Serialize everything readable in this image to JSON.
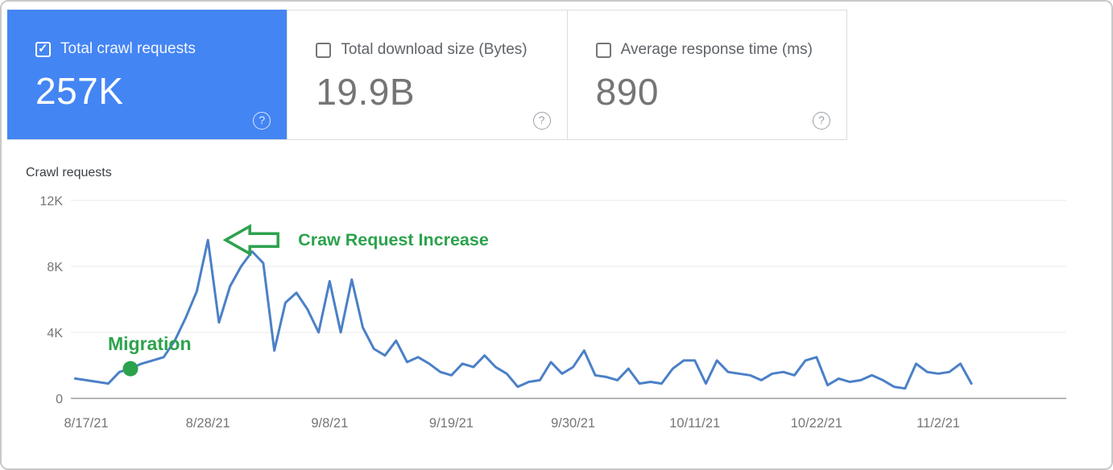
{
  "cards": [
    {
      "label": "Total crawl requests",
      "value": "257K",
      "checked": true,
      "selected": true,
      "help_icon": "?"
    },
    {
      "label": "Total download size (Bytes)",
      "value": "19.9B",
      "checked": false,
      "selected": false,
      "help_icon": "?"
    },
    {
      "label": "Average response time (ms)",
      "value": "890",
      "checked": false,
      "selected": false,
      "help_icon": "?"
    }
  ],
  "chart_data": {
    "type": "line",
    "title": "Crawl requests",
    "xlabel": "",
    "ylabel": "",
    "ylim": [
      0,
      12000
    ],
    "grid": "horizontal",
    "legend": "none",
    "yticks": [
      {
        "label": "12K",
        "value": 12
      },
      {
        "label": "8K",
        "value": 8
      },
      {
        "label": "4K",
        "value": 4
      },
      {
        "label": "0",
        "value": 0
      }
    ],
    "xticks": [
      {
        "label": "8/17/21",
        "index": 1
      },
      {
        "label": "8/28/21",
        "index": 12
      },
      {
        "label": "9/8/21",
        "index": 23
      },
      {
        "label": "9/19/21",
        "index": 34
      },
      {
        "label": "9/30/21",
        "index": 45
      },
      {
        "label": "10/11/21",
        "index": 56
      },
      {
        "label": "10/22/21",
        "index": 67
      },
      {
        "label": "11/2/21",
        "index": 78
      }
    ],
    "series": [
      {
        "name": "Crawl requests",
        "color": "#4b80c7",
        "unit": "requests (thousands)",
        "dates": [
          "8/16/21",
          "8/17/21",
          "8/18/21",
          "8/19/21",
          "8/20/21",
          "8/21/21",
          "8/22/21",
          "8/23/21",
          "8/24/21",
          "8/25/21",
          "8/26/21",
          "8/27/21",
          "8/28/21",
          "8/29/21",
          "8/30/21",
          "8/31/21",
          "9/1/21",
          "9/2/21",
          "9/3/21",
          "9/4/21",
          "9/5/21",
          "9/6/21",
          "9/7/21",
          "9/8/21",
          "9/9/21",
          "9/10/21",
          "9/11/21",
          "9/12/21",
          "9/13/21",
          "9/14/21",
          "9/15/21",
          "9/16/21",
          "9/17/21",
          "9/18/21",
          "9/19/21",
          "9/20/21",
          "9/21/21",
          "9/22/21",
          "9/23/21",
          "9/24/21",
          "9/25/21",
          "9/26/21",
          "9/27/21",
          "9/28/21",
          "9/29/21",
          "9/30/21",
          "10/1/21",
          "10/2/21",
          "10/3/21",
          "10/4/21",
          "10/5/21",
          "10/6/21",
          "10/7/21",
          "10/8/21",
          "10/9/21",
          "10/10/21",
          "10/11/21",
          "10/12/21",
          "10/13/21",
          "10/14/21",
          "10/15/21",
          "10/16/21",
          "10/17/21",
          "10/18/21",
          "10/19/21",
          "10/20/21",
          "10/21/21",
          "10/22/21",
          "10/23/21",
          "10/24/21",
          "10/25/21",
          "10/26/21",
          "10/27/21",
          "10/28/21",
          "10/29/21",
          "10/30/21",
          "10/31/21",
          "11/1/21",
          "11/2/21",
          "11/3/21",
          "11/4/21",
          "11/5/21"
        ],
        "values_k": [
          1.2,
          1.1,
          1.0,
          0.9,
          1.6,
          1.8,
          2.1,
          2.3,
          2.5,
          3.5,
          4.9,
          6.5,
          9.6,
          4.6,
          6.8,
          8.0,
          8.9,
          8.2,
          2.9,
          5.8,
          6.4,
          5.4,
          4.0,
          7.1,
          4.0,
          7.2,
          4.3,
          3.0,
          2.6,
          3.5,
          2.2,
          2.5,
          2.1,
          1.6,
          1.4,
          2.1,
          1.9,
          2.6,
          1.9,
          1.5,
          0.7,
          1.0,
          1.1,
          2.2,
          1.5,
          1.9,
          2.9,
          1.4,
          1.3,
          1.1,
          1.8,
          0.9,
          1.0,
          0.9,
          1.8,
          2.3,
          2.3,
          0.9,
          2.3,
          1.6,
          1.5,
          1.4,
          1.1,
          1.5,
          1.6,
          1.4,
          2.3,
          2.5,
          0.8,
          1.2,
          1.0,
          1.1,
          1.4,
          1.1,
          0.7,
          0.6,
          2.1,
          1.6,
          1.5,
          1.6,
          2.1,
          0.9
        ]
      }
    ],
    "annotations": [
      {
        "type": "point",
        "label": "Migration",
        "date": "8/21/21",
        "index": 5,
        "value_k": 1.8,
        "color": "#2ca24c"
      },
      {
        "type": "arrow",
        "label": "Craw Request Increase",
        "date": "8/28/21",
        "index": 12,
        "value_k": 9.6,
        "color": "#2ca24c"
      }
    ]
  },
  "colors": {
    "selected_card_bg": "#4485f4",
    "line": "#4b80c7",
    "annotation_green": "#2ca24c",
    "grid": "#e8e8e8",
    "axis": "#9e9e9e",
    "tick_text": "#757575",
    "card_border": "#dadce0"
  }
}
